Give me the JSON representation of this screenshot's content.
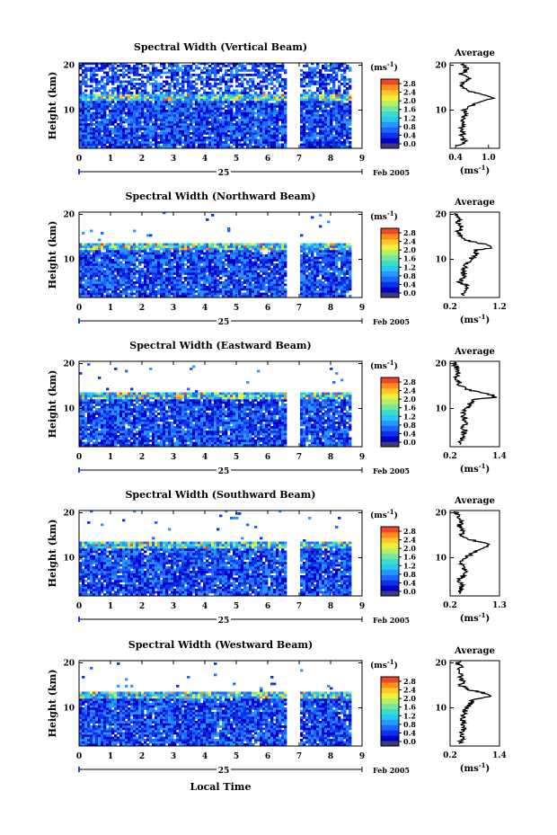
{
  "figure": {
    "xlabel": "Local Time",
    "date_day": "25",
    "date_month": "Feb 2005",
    "colorbar_unit": "(ms",
    "colorbar_ticks": [
      "0.0",
      "0.4",
      "0.8",
      "1.2",
      "1.6",
      "2.0",
      "2.4",
      "2.8"
    ],
    "average_title": "Average",
    "average_unit": "(ms",
    "ylabel": "Height (km)",
    "colors": [
      "#3c3c78",
      "#0000c8",
      "#0a32e6",
      "#1e64ff",
      "#2896ff",
      "#28c8f0",
      "#3cdcc8",
      "#78e6a0",
      "#b4f064",
      "#f0f03c",
      "#ffc828",
      "#ff8c1e",
      "#f04628",
      "#d20a14"
    ]
  },
  "chart_data": [
    {
      "type": "heatmap",
      "title": "Spectral Width (Vertical Beam)",
      "x_ticks": [
        "0",
        "1",
        "2",
        "3",
        "4",
        "5",
        "6",
        "7",
        "8",
        "9"
      ],
      "xlim": [
        0,
        9
      ],
      "y_ticks": [
        "10",
        "20"
      ],
      "ylim": [
        1.5,
        20.5
      ],
      "clim": [
        0.0,
        2.8
      ],
      "tropopause_km": 12.5,
      "data_gap": [
        6.55,
        7.0
      ],
      "end_time": 8.6,
      "avg_profile": {
        "height": [
          2,
          3,
          4,
          5,
          6,
          7,
          8,
          9,
          10,
          11,
          12,
          12.5,
          13,
          13.5,
          14,
          15,
          16,
          17,
          18,
          19,
          20
        ],
        "value": [
          0.45,
          0.6,
          0.5,
          0.55,
          0.48,
          0.58,
          0.52,
          0.6,
          0.55,
          0.7,
          0.85,
          1.1,
          1.05,
          0.9,
          0.7,
          0.55,
          0.5,
          0.65,
          0.5,
          0.6,
          0.55
        ]
      },
      "avg_ticks": [
        "0.4",
        "1.0"
      ],
      "avg_xlim": [
        0.3,
        1.2
      ]
    },
    {
      "type": "heatmap",
      "title": "Spectral Width (Northward Beam)",
      "x_ticks": [
        "0",
        "1",
        "2",
        "3",
        "4",
        "5",
        "6",
        "7",
        "8",
        "9"
      ],
      "xlim": [
        0,
        9
      ],
      "y_ticks": [
        "10",
        "20"
      ],
      "ylim": [
        1.5,
        20.5
      ],
      "clim": [
        0.0,
        2.8
      ],
      "tropopause_km": 12.5,
      "data_gap": [
        6.55,
        7.0
      ],
      "end_time": 8.6,
      "avg_profile": {
        "height": [
          2,
          3,
          4,
          5,
          6,
          7,
          8,
          9,
          10,
          11,
          12,
          12.5,
          13,
          13.5,
          14,
          15,
          16,
          17,
          18,
          19,
          20
        ],
        "value": [
          0.45,
          0.5,
          0.55,
          0.4,
          0.5,
          0.45,
          0.5,
          0.55,
          0.6,
          0.75,
          0.7,
          1.0,
          0.95,
          0.85,
          0.6,
          0.4,
          0.35,
          0.45,
          0.35,
          0.4,
          0.35
        ]
      },
      "avg_ticks": [
        "0.2",
        "1.2"
      ],
      "avg_xlim": [
        0.2,
        1.2
      ]
    },
    {
      "type": "heatmap",
      "title": "Spectral Width (Eastward Beam)",
      "x_ticks": [
        "0",
        "1",
        "2",
        "3",
        "4",
        "5",
        "6",
        "7",
        "8",
        "9"
      ],
      "xlim": [
        0,
        9
      ],
      "y_ticks": [
        "10",
        "20"
      ],
      "ylim": [
        1.5,
        20.5
      ],
      "clim": [
        0.0,
        2.8
      ],
      "tropopause_km": 12.5,
      "data_gap": [
        6.55,
        7.0
      ],
      "end_time": 8.6,
      "avg_profile": {
        "height": [
          2,
          3,
          4,
          5,
          6,
          7,
          8,
          9,
          10,
          11,
          12,
          12.5,
          13,
          13.5,
          14,
          15,
          16,
          17,
          18,
          19,
          20
        ],
        "value": [
          0.5,
          0.45,
          0.5,
          0.55,
          0.5,
          0.6,
          0.55,
          0.5,
          0.6,
          0.65,
          0.8,
          1.3,
          1.2,
          1.0,
          0.7,
          0.45,
          0.4,
          0.35,
          0.4,
          0.35,
          0.3
        ]
      },
      "avg_ticks": [
        "0.2",
        "1.4"
      ],
      "avg_xlim": [
        0.2,
        1.4
      ]
    },
    {
      "type": "heatmap",
      "title": "Spectral Width (Southward Beam)",
      "x_ticks": [
        "0",
        "1",
        "2",
        "3",
        "4",
        "5",
        "6",
        "7",
        "8",
        "9"
      ],
      "xlim": [
        0,
        9
      ],
      "y_ticks": [
        "10",
        "20"
      ],
      "ylim": [
        1.5,
        20.5
      ],
      "clim": [
        0.0,
        2.8
      ],
      "tropopause_km": 12.5,
      "data_gap": [
        6.55,
        7.0
      ],
      "end_time": 8.6,
      "avg_profile": {
        "height": [
          2,
          3,
          4,
          5,
          6,
          7,
          8,
          9,
          10,
          11,
          12,
          12.5,
          13,
          13.5,
          14,
          15,
          16,
          17,
          18,
          19,
          20
        ],
        "value": [
          0.4,
          0.45,
          0.5,
          0.4,
          0.5,
          0.55,
          0.5,
          0.45,
          0.55,
          0.7,
          0.85,
          1.05,
          1.0,
          0.9,
          0.65,
          0.45,
          0.5,
          0.4,
          0.45,
          0.4,
          0.35
        ]
      },
      "avg_ticks": [
        "0.2",
        "1.3"
      ],
      "avg_xlim": [
        0.2,
        1.3
      ]
    },
    {
      "type": "heatmap",
      "title": "Spectral Width (Westward Beam)",
      "x_ticks": [
        "0",
        "1",
        "2",
        "3",
        "4",
        "5",
        "6",
        "7",
        "8",
        "9"
      ],
      "xlim": [
        0,
        9
      ],
      "y_ticks": [
        "10",
        "20"
      ],
      "ylim": [
        1.5,
        20.5
      ],
      "clim": [
        0.0,
        2.8
      ],
      "tropopause_km": 12.5,
      "data_gap": [
        6.55,
        7.0
      ],
      "end_time": 8.6,
      "avg_profile": {
        "height": [
          2,
          3,
          4,
          5,
          6,
          7,
          8,
          9,
          10,
          11,
          12,
          12.5,
          13,
          13.5,
          14,
          15,
          16,
          17,
          18,
          19,
          20
        ],
        "value": [
          0.45,
          0.5,
          0.45,
          0.5,
          0.55,
          0.5,
          0.5,
          0.55,
          0.6,
          0.7,
          0.8,
          1.2,
          1.1,
          0.95,
          0.65,
          0.45,
          0.5,
          0.45,
          0.4,
          0.45,
          0.4
        ]
      },
      "avg_ticks": [
        "0.2",
        "1.4"
      ],
      "avg_xlim": [
        0.2,
        1.4
      ]
    }
  ]
}
